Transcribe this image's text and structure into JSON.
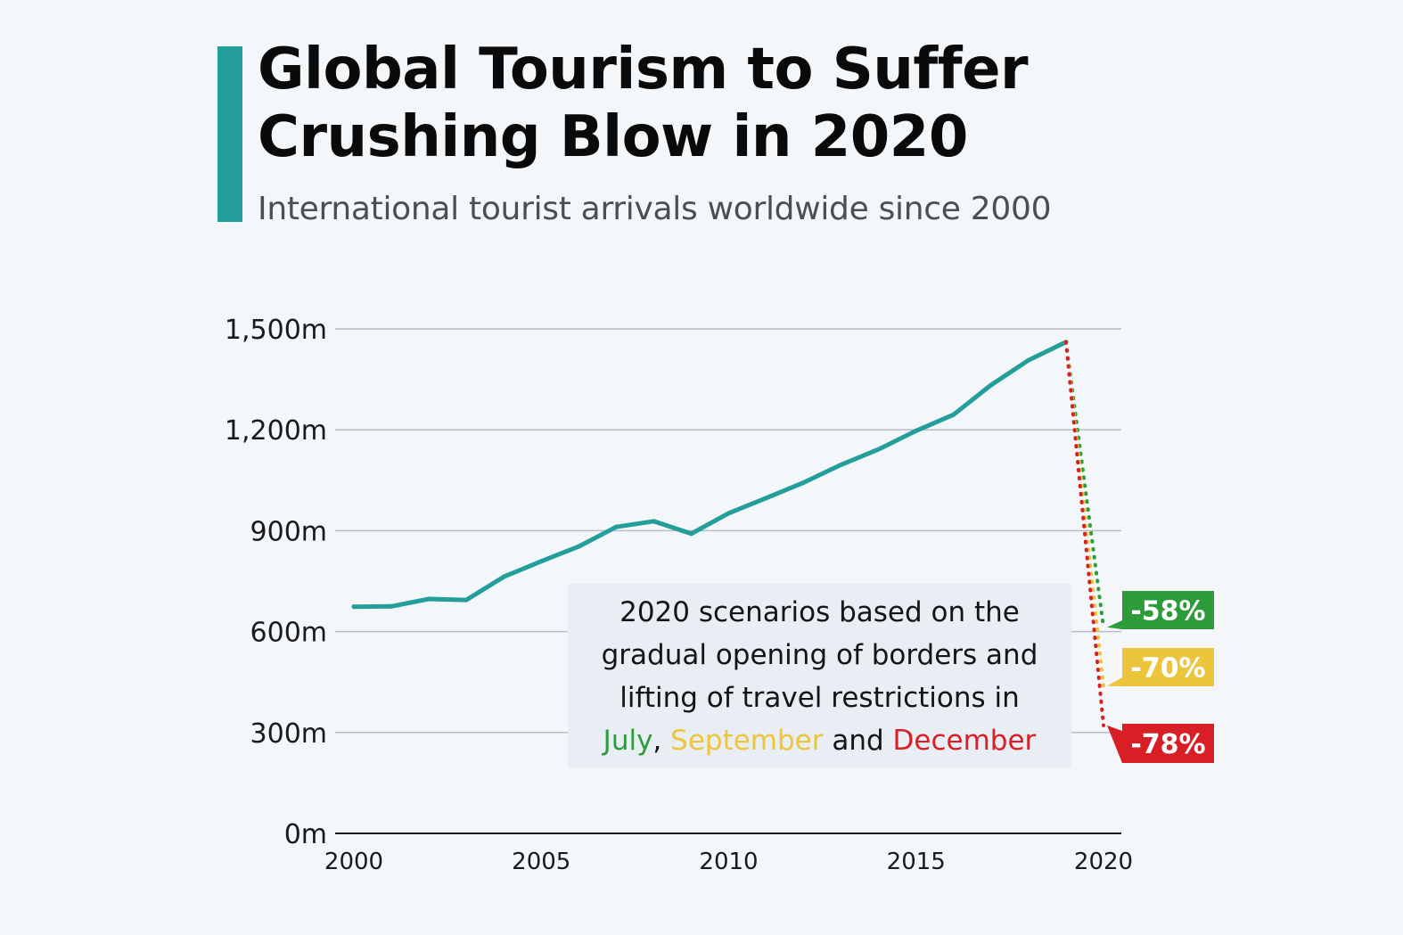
{
  "title": "Global Tourism to Suffer Crushing Blow in 2020",
  "subtitle": "International tourist arrivals worldwide since 2000",
  "colors": {
    "accent": "#239e9b",
    "line": "#239e9b",
    "july": "#2e9c3a",
    "september": "#edc53c",
    "december": "#d81f26",
    "grid": "#b9bec4",
    "background": "#f3f7fa",
    "note_background": "#e9eef4"
  },
  "note": {
    "line1": "2020 scenarios based on the",
    "line2": "gradual opening of borders and",
    "line3": "lifting of travel restrictions in",
    "july": "July",
    "comma": ",",
    "september": "September",
    "and": "and",
    "december": "December"
  },
  "chart_data": {
    "type": "line",
    "title": "Global Tourism to Suffer Crushing Blow in 2020",
    "subtitle": "International tourist arrivals worldwide since 2000",
    "xlabel": "",
    "ylabel": "",
    "xlim": [
      2000,
      2020
    ],
    "ylim": [
      0,
      1500
    ],
    "grid": true,
    "y_ticks": [
      {
        "value": 0,
        "label": "0m"
      },
      {
        "value": 300,
        "label": "300m"
      },
      {
        "value": 600,
        "label": "600m"
      },
      {
        "value": 900,
        "label": "900m"
      },
      {
        "value": 1200,
        "label": "1,200m"
      },
      {
        "value": 1500,
        "label": "1,500m"
      }
    ],
    "x_ticks": [
      {
        "value": 2000,
        "label": "2000"
      },
      {
        "value": 2005,
        "label": "2005"
      },
      {
        "value": 2010,
        "label": "2010"
      },
      {
        "value": 2015,
        "label": "2015"
      },
      {
        "value": 2020,
        "label": "2020"
      }
    ],
    "series": [
      {
        "x": [
          2000,
          2001,
          2002,
          2003,
          2004,
          2005,
          2006,
          2007,
          2008,
          2009,
          2010,
          2011,
          2012,
          2013,
          2014,
          2015,
          2016,
          2017,
          2018,
          2019
        ],
        "values": [
          674,
          675,
          697,
          694,
          763,
          809,
          853,
          911,
          928,
          891,
          952,
          997,
          1043,
          1096,
          1142,
          1197,
          1245,
          1333,
          1407,
          1461
        ],
        "style": "solid",
        "color": "#239e9b"
      }
    ],
    "scenarios": [
      {
        "name": "July",
        "label": "-58%",
        "from": {
          "x": 2019,
          "y": 1461
        },
        "to": {
          "x": 2020,
          "y": 613
        },
        "color": "#2e9c3a"
      },
      {
        "name": "September",
        "label": "-70%",
        "from": {
          "x": 2019,
          "y": 1461
        },
        "to": {
          "x": 2020,
          "y": 438
        },
        "color": "#edc53c"
      },
      {
        "name": "December",
        "label": "-78%",
        "from": {
          "x": 2019,
          "y": 1461
        },
        "to": {
          "x": 2020,
          "y": 321
        },
        "color": "#d81f26"
      }
    ]
  }
}
